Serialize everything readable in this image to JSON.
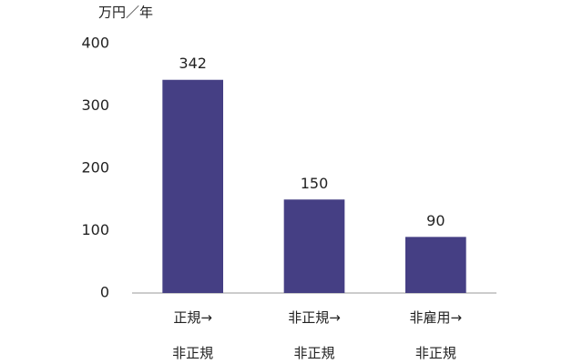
{
  "chart_data": {
    "type": "bar",
    "y_axis_label": "万円／年",
    "categories": [
      "正規→\n非正規",
      "非正規→\n非正規",
      "非雇用→\n非正規"
    ],
    "values": [
      342,
      150,
      90
    ],
    "color": "#453f84",
    "ylim": [
      0,
      400
    ],
    "yticks": [
      0,
      100,
      200,
      300,
      400
    ],
    "grid": false,
    "data_labels": true
  }
}
